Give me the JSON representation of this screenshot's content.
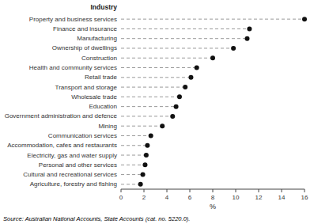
{
  "chart_data": {
    "type": "lollipop",
    "orientation": "horizontal",
    "categories": [
      "Property and business services",
      "Finance and insurance",
      "Manufacturing",
      "Ownership of dwellings",
      "Construction",
      "Health and community services",
      "Retail trade",
      "Transport and storage",
      "Wholesale trade",
      "Education",
      "Government administration and defence",
      "Mining",
      "Communication services",
      "Accommodation, cafes and restaurants",
      "Electricity, gas and water supply",
      "Personal and other services",
      "Cultural and recreational services",
      "Agriculture, forestry and fishing"
    ],
    "values": [
      16.0,
      11.2,
      11.0,
      9.8,
      8.0,
      6.6,
      6.1,
      5.6,
      5.1,
      4.8,
      4.5,
      3.6,
      2.6,
      2.3,
      2.2,
      2.1,
      1.9,
      1.7
    ],
    "color": "#111111",
    "line_style": "dashed",
    "xlabel": "%",
    "ylabel": "Industry",
    "annotations": [
      "Source: Australian National Accounts, State Accounts (cat. no. 5220.0)."
    ],
    "xlim": [
      0,
      16
    ],
    "xticks": [
      0,
      2,
      4,
      6,
      8,
      10,
      12,
      14,
      16
    ],
    "grid": false
  }
}
